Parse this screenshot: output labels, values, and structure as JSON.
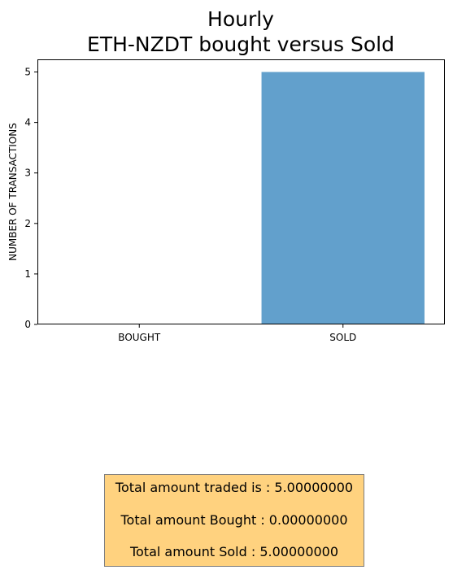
{
  "chart_data": {
    "type": "bar",
    "title_lines": [
      "Hourly",
      "ETH-NZDT bought versus Sold"
    ],
    "xlabel": "",
    "ylabel": "NUMBER OF TRANSACTIONS",
    "categories": [
      "BOUGHT",
      "SOLD"
    ],
    "values": [
      0,
      5
    ],
    "ylim": [
      0,
      5.25
    ],
    "yticks": [
      0,
      1,
      2,
      3,
      4,
      5
    ],
    "bar_color": "#62a0cc",
    "grid": false,
    "legend": false
  },
  "summary": {
    "lines": [
      "Total amount traded is : 5.00000000",
      "Total amount Bought : 0.00000000",
      "Total amount Sold : 5.00000000"
    ],
    "background": "#ffd27f",
    "border": "#7f7f7f"
  }
}
